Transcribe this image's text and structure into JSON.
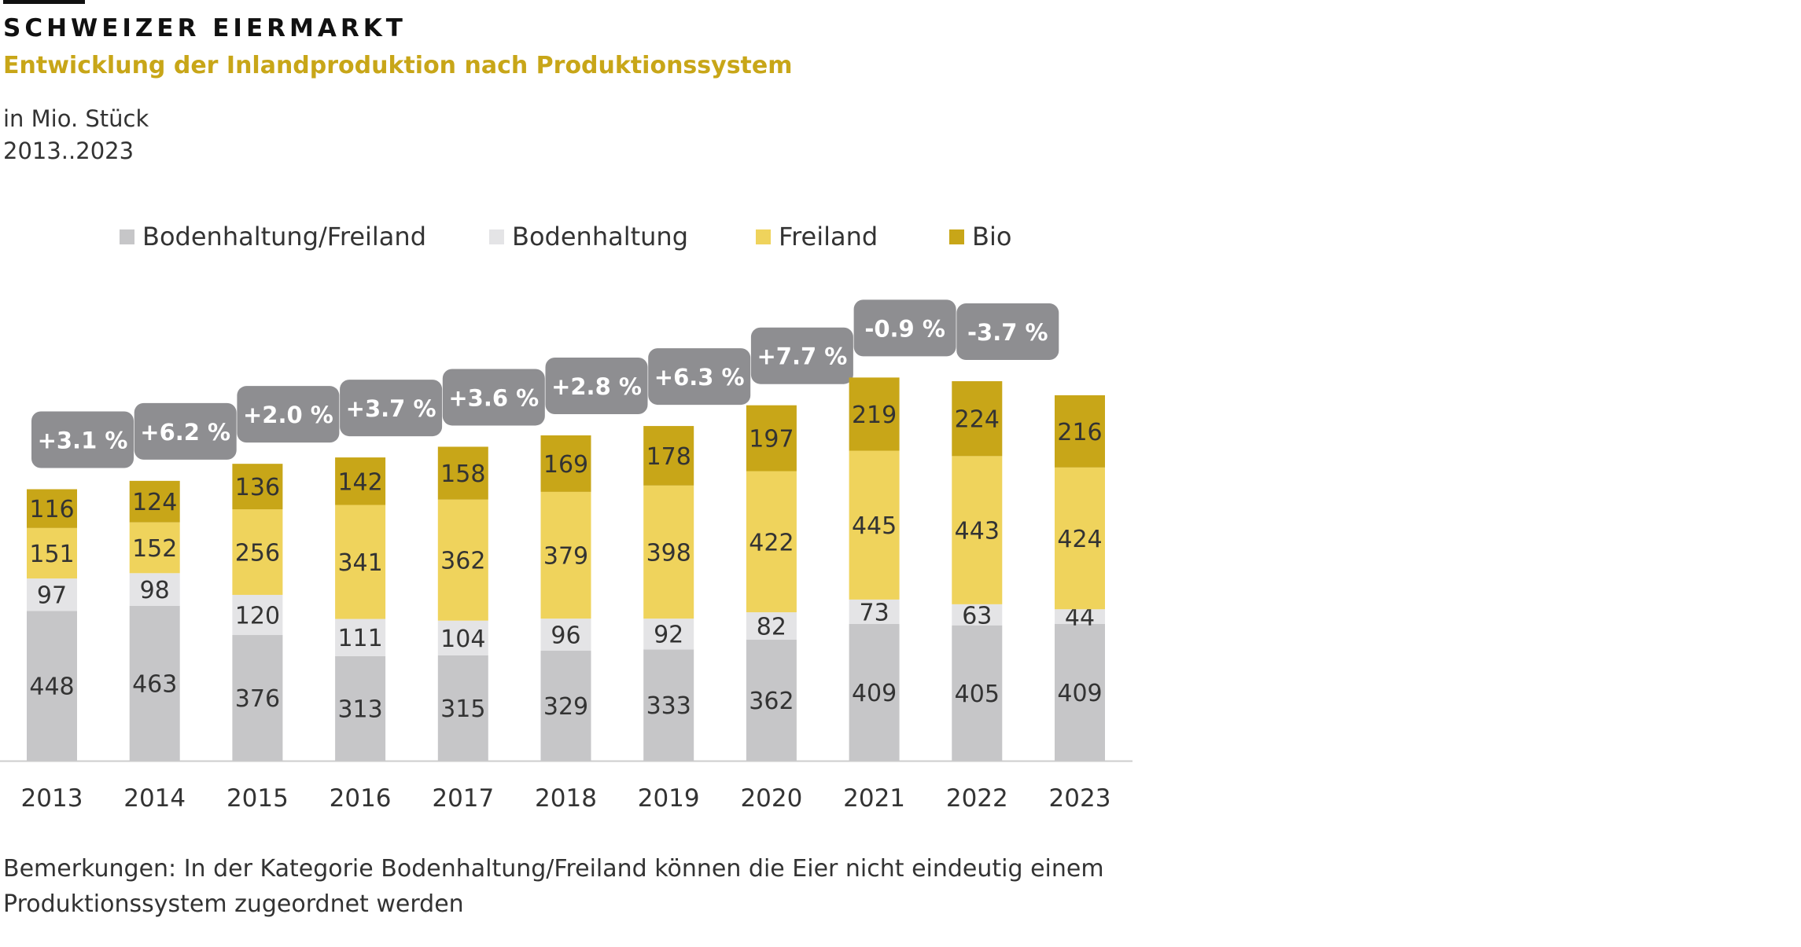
{
  "header": {
    "kicker": "SCHWEIZER EIERMARKT",
    "subtitle": "Entwicklung der Inlandproduktion nach Produktionssystem",
    "unit": "in Mio. Stück",
    "range": "2013..2023"
  },
  "colors": {
    "bodenhaltung_freiland": "#c6c6c8",
    "bodenhaltung": "#e4e4e6",
    "freiland": "#efd35c",
    "bio": "#c8a618",
    "badge": "#8e8e91",
    "axis": "#cccccc"
  },
  "legend": [
    {
      "label": "Bodenhaltung/Freiland",
      "color": "#c6c6c8"
    },
    {
      "label": "Bodenhaltung",
      "color": "#e4e4e6"
    },
    {
      "label": "Freiland",
      "color": "#efd35c"
    },
    {
      "label": "Bio",
      "color": "#c8a618"
    }
  ],
  "chart_data": {
    "type": "bar",
    "stacked": true,
    "title": "Entwicklung der Inlandproduktion nach Produktionssystem",
    "ylabel": "in Mio. Stück",
    "xlabel": "",
    "categories": [
      "2013",
      "2014",
      "2015",
      "2016",
      "2017",
      "2018",
      "2019",
      "2020",
      "2021",
      "2022",
      "2023"
    ],
    "series": [
      {
        "name": "Bodenhaltung/Freiland",
        "values": [
          448,
          463,
          376,
          313,
          315,
          329,
          333,
          362,
          409,
          405,
          409
        ]
      },
      {
        "name": "Bodenhaltung",
        "values": [
          97,
          98,
          120,
          111,
          104,
          96,
          92,
          82,
          73,
          63,
          44
        ]
      },
      {
        "name": "Freiland",
        "values": [
          151,
          152,
          256,
          341,
          362,
          379,
          398,
          422,
          445,
          443,
          424
        ]
      },
      {
        "name": "Bio",
        "values": [
          116,
          124,
          136,
          142,
          158,
          169,
          178,
          197,
          219,
          224,
          216
        ]
      }
    ],
    "growth_labels": [
      "+3.1 %",
      "+6.2 %",
      "+2.0 %",
      "+3.7 %",
      "+3.6 %",
      "+2.8 %",
      "+6.3 %",
      "+7.7 %",
      "-0.9 %",
      "-3.7 %"
    ],
    "ylim": [
      0,
      1200
    ],
    "grid": false,
    "legend_position": "top"
  },
  "note": "Bemerkungen: In der Kategorie Bodenhaltung/Freiland können die Eier nicht eindeutig einem Produktionssystem zugeordnet werden"
}
